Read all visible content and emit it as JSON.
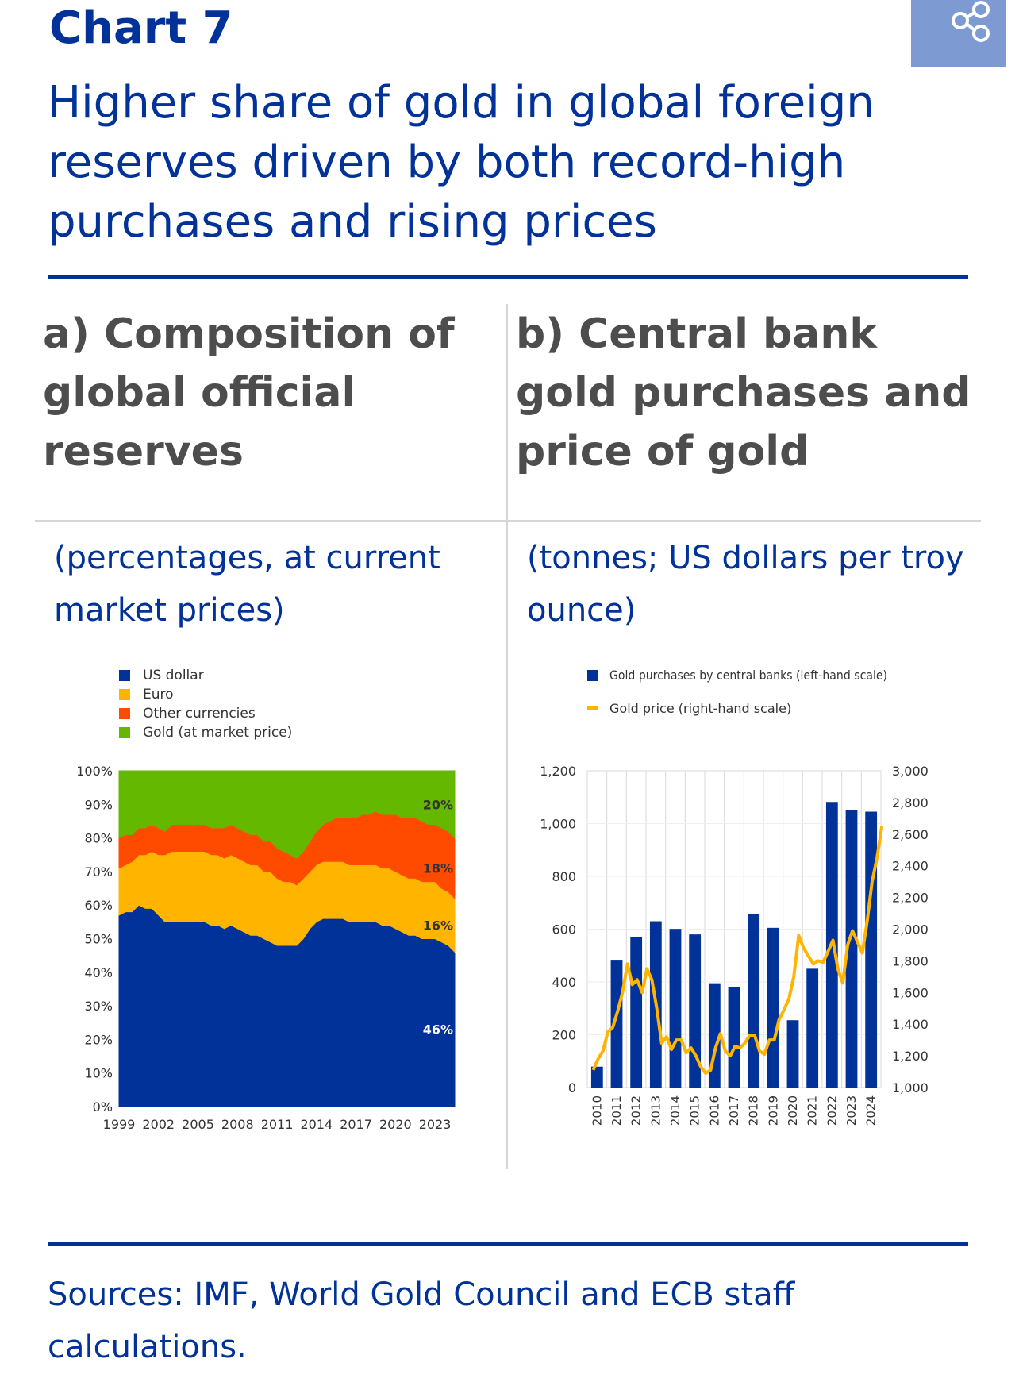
{
  "header": {
    "chart_label": "Chart 7",
    "title": "Higher share of gold in global foreign reserves driven by both record-high purchases and rising prices",
    "share_icon": "share-icon"
  },
  "panel_a": {
    "title": "a) Composition of global official reserves",
    "subtitle": "(percentages, at current market prices)"
  },
  "panel_b": {
    "title": "b) Central bank gold purchases and price of gold",
    "subtitle": "(tonnes; US dollars per troy ounce)"
  },
  "footer": {
    "sources": "Sources: IMF, World Gold Council and ECB staff calculations."
  },
  "colors": {
    "brand_blue": "#003299",
    "usd": "#003299",
    "euro": "#ffb400",
    "other": "#ff4b00",
    "gold": "#65b800",
    "gold_price": "#ffb400"
  },
  "chart_data": [
    {
      "type": "area",
      "stacked": true,
      "xlabel": "",
      "ylabel": "",
      "ylim": [
        0,
        100
      ],
      "y_ticks": [
        "0%",
        "10%",
        "20%",
        "30%",
        "40%",
        "50%",
        "60%",
        "70%",
        "80%",
        "90%",
        "100%"
      ],
      "x_ticks": [
        "1999",
        "2002",
        "2005",
        "2008",
        "2011",
        "2014",
        "2017",
        "2020",
        "2023"
      ],
      "legend_position": "top-left",
      "x": [
        1999.0,
        1999.5,
        2000.0,
        2000.5,
        2001.0,
        2001.5,
        2002.0,
        2002.5,
        2003.0,
        2003.5,
        2004.0,
        2004.5,
        2005.0,
        2005.5,
        2006.0,
        2006.5,
        2007.0,
        2007.5,
        2008.0,
        2008.5,
        2009.0,
        2009.5,
        2010.0,
        2010.5,
        2011.0,
        2011.5,
        2012.0,
        2012.5,
        2013.0,
        2013.5,
        2014.0,
        2014.5,
        2015.0,
        2015.5,
        2016.0,
        2016.5,
        2017.0,
        2017.5,
        2018.0,
        2018.5,
        2019.0,
        2019.5,
        2020.0,
        2020.5,
        2021.0,
        2021.5,
        2022.0,
        2022.5,
        2023.0,
        2023.5,
        2024.0,
        2024.5
      ],
      "series": [
        {
          "name": "US dollar",
          "values": [
            57,
            58,
            58,
            60,
            59,
            59,
            57,
            55,
            55,
            55,
            55,
            55,
            55,
            55,
            54,
            54,
            53,
            54,
            53,
            52,
            51,
            51,
            50,
            49,
            48,
            48,
            48,
            48,
            50,
            53,
            55,
            56,
            56,
            56,
            56,
            55,
            55,
            55,
            55,
            55,
            54,
            54,
            53,
            52,
            51,
            51,
            50,
            50,
            50,
            49,
            48,
            46
          ]
        },
        {
          "name": "Euro",
          "values": [
            14,
            14,
            15,
            15,
            16,
            17,
            18,
            20,
            21,
            21,
            21,
            21,
            21,
            21,
            21,
            21,
            21,
            21,
            21,
            21,
            21,
            21,
            20,
            21,
            20,
            19,
            19,
            18,
            18,
            17,
            17,
            17,
            17,
            17,
            17,
            17,
            17,
            17,
            17,
            17,
            17,
            17,
            17,
            17,
            17,
            17,
            17,
            17,
            17,
            16,
            16,
            16
          ]
        },
        {
          "name": "Other currencies",
          "values": [
            9,
            9,
            8,
            8,
            8,
            8,
            8,
            7,
            8,
            8,
            8,
            8,
            8,
            8,
            8,
            8,
            9,
            9,
            9,
            9,
            9,
            9,
            9,
            9,
            9,
            9,
            8,
            8,
            8,
            9,
            10,
            11,
            12,
            13,
            13,
            14,
            14,
            15,
            15,
            16,
            16,
            16,
            17,
            17,
            18,
            18,
            18,
            17,
            17,
            18,
            18,
            18
          ]
        },
        {
          "name": "Gold (at market price)",
          "values": [
            20,
            19,
            19,
            17,
            17,
            16,
            17,
            18,
            16,
            16,
            16,
            16,
            16,
            16,
            17,
            17,
            17,
            16,
            17,
            18,
            19,
            19,
            21,
            21,
            23,
            24,
            25,
            26,
            24,
            21,
            18,
            16,
            15,
            14,
            14,
            14,
            14,
            13,
            13,
            12,
            13,
            13,
            13,
            14,
            14,
            14,
            15,
            16,
            16,
            17,
            18,
            20
          ]
        }
      ],
      "data_labels": [
        {
          "series": "Gold (at market price)",
          "text": "20%"
        },
        {
          "series": "Other currencies",
          "text": "18%"
        },
        {
          "series": "Euro",
          "text": "16%"
        },
        {
          "series": "US dollar",
          "text": "46%"
        }
      ]
    },
    {
      "type": "bar+line",
      "xlabel": "",
      "ylabel": "",
      "categories": [
        "2010",
        "2011",
        "2012",
        "2013",
        "2014",
        "2015",
        "2016",
        "2017",
        "2018",
        "2019",
        "2020",
        "2021",
        "2022",
        "2023",
        "2024"
      ],
      "grid": true,
      "legend_position": "top",
      "left_axis": {
        "ylim": [
          0,
          1200
        ],
        "ticks": [
          "0",
          "200",
          "400",
          "600",
          "800",
          "1,000",
          "1,200"
        ]
      },
      "right_axis": {
        "ylim": [
          1000,
          3000
        ],
        "ticks": [
          "1,000",
          "1,200",
          "1,400",
          "1,600",
          "1,800",
          "2,000",
          "2,200",
          "2,400",
          "2,600",
          "2,800",
          "3,000"
        ]
      },
      "series": [
        {
          "name": "Gold purchases by central banks (left-hand scale)",
          "kind": "bar",
          "axis": "left",
          "values": [
            79,
            481,
            569,
            630,
            601,
            580,
            395,
            379,
            656,
            605,
            255,
            450,
            1082,
            1050,
            1045
          ]
        },
        {
          "name": "Gold price (right-hand scale)",
          "kind": "line",
          "axis": "right",
          "x": [
            2010.0,
            2010.25,
            2010.5,
            2010.75,
            2011.0,
            2011.25,
            2011.5,
            2011.75,
            2012.0,
            2012.25,
            2012.5,
            2012.75,
            2013.0,
            2013.25,
            2013.5,
            2013.75,
            2014.0,
            2014.25,
            2014.5,
            2014.75,
            2015.0,
            2015.25,
            2015.5,
            2015.75,
            2016.0,
            2016.25,
            2016.5,
            2016.75,
            2017.0,
            2017.25,
            2017.5,
            2017.75,
            2018.0,
            2018.25,
            2018.5,
            2018.75,
            2019.0,
            2019.25,
            2019.5,
            2019.75,
            2020.0,
            2020.25,
            2020.5,
            2020.75,
            2021.0,
            2021.25,
            2021.5,
            2021.75,
            2022.0,
            2022.25,
            2022.5,
            2022.75,
            2023.0,
            2023.25,
            2023.5,
            2023.75,
            2024.0,
            2024.25,
            2024.5,
            2024.75
          ],
          "values": [
            1110,
            1180,
            1230,
            1350,
            1380,
            1480,
            1600,
            1780,
            1650,
            1680,
            1600,
            1750,
            1680,
            1500,
            1280,
            1320,
            1240,
            1300,
            1300,
            1220,
            1250,
            1200,
            1130,
            1090,
            1110,
            1250,
            1340,
            1230,
            1200,
            1260,
            1250,
            1280,
            1330,
            1330,
            1230,
            1210,
            1300,
            1300,
            1430,
            1490,
            1560,
            1700,
            1960,
            1880,
            1830,
            1780,
            1800,
            1790,
            1860,
            1930,
            1750,
            1660,
            1900,
            1990,
            1920,
            1850,
            2050,
            2300,
            2450,
            2650
          ]
        }
      ]
    }
  ]
}
